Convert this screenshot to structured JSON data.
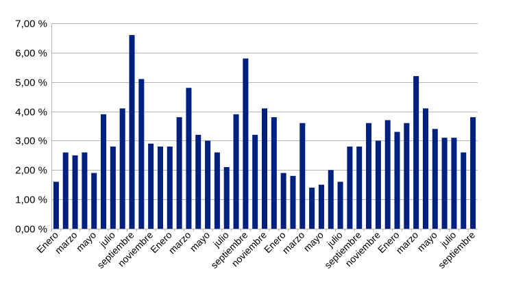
{
  "chart_data": {
    "type": "bar",
    "title": "",
    "xlabel": "",
    "ylabel": "",
    "ylim": [
      0,
      7
    ],
    "yticks": [
      0,
      1,
      2,
      3,
      4,
      5,
      6,
      7
    ],
    "ytick_labels": [
      "0,00 %",
      "1,00 %",
      "2,00 %",
      "3,00 %",
      "4,00 %",
      "5,00 %",
      "6,00 %",
      "7,00 %"
    ],
    "grid": true,
    "legend": "none",
    "bar_color": "#002080",
    "categories": [
      "Enero",
      "",
      "marzo",
      "",
      "mayo",
      "",
      "julio",
      "",
      "septiembre",
      "",
      "noviembre",
      "",
      "Enero",
      "",
      "marzo",
      "",
      "mayo",
      "",
      "julio",
      "",
      "septiembre",
      "",
      "noviembre",
      "",
      "Enero",
      "",
      "marzo",
      "",
      "mayo",
      "",
      "julio",
      "",
      "septiembre",
      "",
      "noviembre",
      "",
      "Enero",
      "",
      "marzo",
      "",
      "mayo",
      "",
      "julio",
      "",
      "septiembre"
    ],
    "values": [
      1.6,
      2.6,
      2.5,
      2.6,
      1.9,
      3.9,
      2.8,
      4.1,
      6.6,
      5.1,
      2.9,
      2.8,
      2.8,
      3.8,
      4.8,
      3.2,
      3.0,
      2.6,
      2.1,
      3.9,
      5.8,
      3.2,
      4.1,
      3.8,
      1.9,
      1.8,
      3.6,
      1.4,
      1.5,
      2.0,
      1.6,
      2.8,
      2.8,
      3.6,
      3.0,
      3.7,
      3.3,
      3.6,
      5.2,
      4.1,
      3.4,
      3.1,
      3.1,
      2.6,
      3.8
    ]
  }
}
